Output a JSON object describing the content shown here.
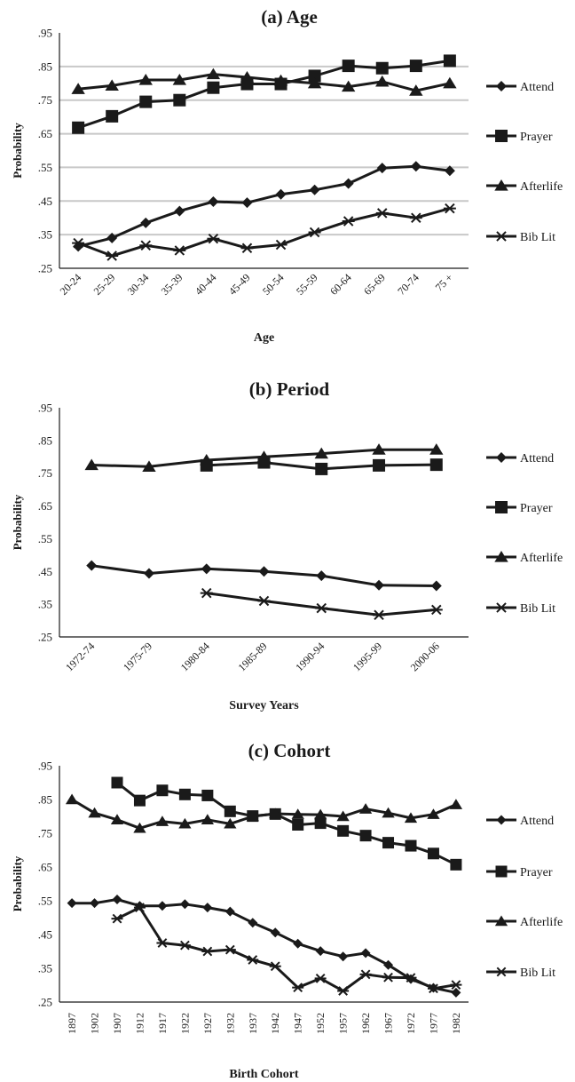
{
  "chart_data": [
    {
      "type": "line",
      "title": "(a) Age",
      "xlabel": "Age",
      "ylabel": "Probability",
      "ylim": [
        0.25,
        0.95
      ],
      "yticks": [
        ".25",
        ".35",
        ".45",
        ".55",
        ".65",
        ".75",
        ".85",
        ".95"
      ],
      "grid": true,
      "legend": "right",
      "categories": [
        "20-24",
        "25-29",
        "30-34",
        "35-39",
        "40-44",
        "45-49",
        "50-54",
        "55-59",
        "60-64",
        "65-69",
        "70-74",
        "75 +"
      ],
      "series": [
        {
          "name": "Attend",
          "marker": "diamond",
          "values": [
            0.315,
            0.34,
            0.385,
            0.42,
            0.448,
            0.445,
            0.47,
            0.483,
            0.502,
            0.548,
            0.553,
            0.54
          ]
        },
        {
          "name": "Prayer",
          "marker": "square",
          "values": [
            0.668,
            0.702,
            0.745,
            0.75,
            0.787,
            0.798,
            0.798,
            0.822,
            0.852,
            0.845,
            0.852,
            0.867
          ]
        },
        {
          "name": "Afterlife",
          "marker": "triangle",
          "values": [
            0.783,
            0.793,
            0.81,
            0.81,
            0.827,
            0.818,
            0.808,
            0.8,
            0.79,
            0.805,
            0.778,
            0.8
          ]
        },
        {
          "name": "Bib Lit",
          "marker": "star",
          "values": [
            0.325,
            0.287,
            0.318,
            0.303,
            0.338,
            0.31,
            0.32,
            0.357,
            0.39,
            0.414,
            0.4,
            0.428
          ]
        }
      ]
    },
    {
      "type": "line",
      "title": "(b) Period",
      "xlabel": "Survey Years",
      "ylabel": "Probability",
      "ylim": [
        0.25,
        0.95
      ],
      "yticks": [
        ".25",
        ".35",
        ".45",
        ".55",
        ".65",
        ".75",
        ".85",
        ".95"
      ],
      "grid": false,
      "legend": "right",
      "categories": [
        "1972-74",
        "1975-79",
        "1980-84",
        "1985-89",
        "1990-94",
        "1995-99",
        "2000-06"
      ],
      "series": [
        {
          "name": "Attend",
          "marker": "diamond",
          "values": [
            0.468,
            0.444,
            0.458,
            0.45,
            0.437,
            0.408,
            0.406
          ]
        },
        {
          "name": "Prayer",
          "marker": "square",
          "values": [
            null,
            null,
            0.774,
            0.783,
            0.763,
            0.774,
            0.776
          ]
        },
        {
          "name": "Afterlife",
          "marker": "triangle",
          "values": [
            0.775,
            0.77,
            0.79,
            0.8,
            0.81,
            0.822,
            0.822
          ]
        },
        {
          "name": "Bib Lit",
          "marker": "star",
          "values": [
            null,
            null,
            0.384,
            0.36,
            0.338,
            0.317,
            0.333
          ]
        }
      ]
    },
    {
      "type": "line",
      "title": "(c) Cohort",
      "xlabel": "Birth Cohort",
      "ylabel": "Probability",
      "ylim": [
        0.25,
        0.95
      ],
      "yticks": [
        ".25",
        ".35",
        ".45",
        ".55",
        ".65",
        ".75",
        ".85",
        ".95"
      ],
      "grid": false,
      "legend": "right",
      "categories": [
        "1897",
        "1902",
        "1907",
        "1912",
        "1917",
        "1922",
        "1927",
        "1932",
        "1937",
        "1942",
        "1947",
        "1952",
        "1957",
        "1962",
        "1967",
        "1972",
        "1977",
        "1982"
      ],
      "series": [
        {
          "name": "Attend",
          "marker": "diamond",
          "values": [
            0.543,
            0.543,
            0.554,
            0.535,
            0.535,
            0.54,
            0.53,
            0.518,
            0.485,
            0.456,
            0.423,
            0.401,
            0.385,
            0.395,
            0.36,
            0.318,
            0.292,
            0.278
          ]
        },
        {
          "name": "Prayer",
          "marker": "square",
          "values": [
            null,
            null,
            0.9,
            0.847,
            0.877,
            0.865,
            0.862,
            0.815,
            0.801,
            0.807,
            0.775,
            0.78,
            0.757,
            0.743,
            0.722,
            0.713,
            0.69,
            0.657
          ]
        },
        {
          "name": "Afterlife",
          "marker": "triangle",
          "values": [
            0.85,
            0.81,
            0.79,
            0.765,
            0.785,
            0.778,
            0.79,
            0.778,
            0.8,
            0.808,
            0.806,
            0.805,
            0.8,
            0.822,
            0.81,
            0.795,
            0.806,
            0.835
          ]
        },
        {
          "name": "Bib Lit",
          "marker": "star",
          "values": [
            null,
            null,
            0.497,
            0.53,
            0.425,
            0.418,
            0.4,
            0.405,
            0.375,
            0.356,
            0.293,
            0.32,
            0.283,
            0.332,
            0.323,
            0.322,
            0.29,
            0.301
          ]
        }
      ]
    }
  ]
}
